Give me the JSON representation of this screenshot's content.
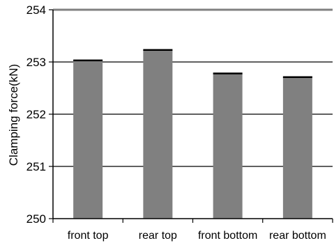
{
  "chart_data": {
    "type": "bar",
    "categories": [
      "front top",
      "rear top",
      "front bottom",
      "rear bottom"
    ],
    "values": [
      253.03,
      253.23,
      252.78,
      252.71
    ],
    "xlabel": "",
    "ylabel": "Clamping force(kN)",
    "ylim": [
      250,
      254
    ],
    "yticks": [
      250,
      251,
      252,
      253,
      254
    ],
    "grid": true,
    "legend": "none",
    "colors": {
      "bar_fill": "#808080",
      "bar_top": "#000000",
      "gridline": "#000000",
      "top_border": "#808080"
    }
  }
}
